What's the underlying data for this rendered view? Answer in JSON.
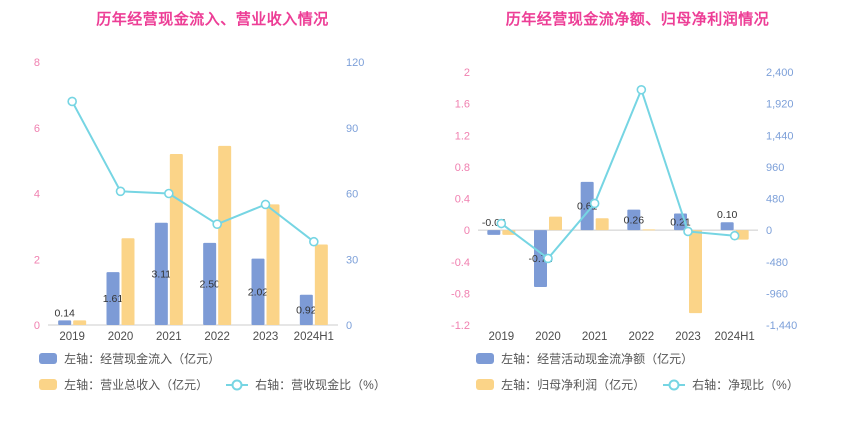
{
  "colors": {
    "title": "#ED3E96",
    "left_axis": "#F080B0",
    "right_axis": "#7DA0D9",
    "bar_blue": "#7D9BD6",
    "bar_yellow": "#FBD488",
    "line_cyan": "#76D5E3",
    "label_text": "#333333",
    "category_text": "#4D4D4D",
    "axis_line": "#CCCCCC",
    "legend_text": "#555555"
  },
  "chart_data": [
    {
      "type": "combo-bar-line",
      "title": "历年经营现金流入、营业收入情况",
      "categories": [
        "2019",
        "2020",
        "2021",
        "2022",
        "2023",
        "2024H1"
      ],
      "left_axis": {
        "min": 0,
        "max": 8,
        "tick_values": [
          0,
          2,
          4,
          6,
          8
        ],
        "tick_labels": [
          "0",
          "2",
          "4",
          "6",
          "8"
        ]
      },
      "right_axis": {
        "min": 0,
        "max": 120,
        "tick_values": [
          0,
          30,
          60,
          90,
          120
        ],
        "tick_labels": [
          "0",
          "30",
          "60",
          "90",
          "120"
        ]
      },
      "series": [
        {
          "id": "operating-cash-inflow",
          "name": "左轴：经营现金流入（亿元）",
          "type": "bar",
          "axis": "left",
          "color_key": "bar_blue",
          "values": [
            0.14,
            1.61,
            3.11,
            2.5,
            2.02,
            0.92
          ],
          "labels": [
            "0.14",
            "1.61",
            "3.11",
            "2.50",
            "2.02",
            "0.92"
          ]
        },
        {
          "id": "total-revenue",
          "name": "左轴：营业总收入（亿元）",
          "type": "bar",
          "axis": "left",
          "color_key": "bar_yellow",
          "values": [
            0.14,
            2.64,
            5.2,
            5.45,
            3.67,
            2.45
          ]
        },
        {
          "id": "revenue-cash-ratio",
          "name": "右轴：营收现金比（%）",
          "type": "line",
          "axis": "right",
          "color_key": "line_cyan",
          "values": [
            102,
            61,
            60,
            46,
            55,
            38
          ]
        }
      ],
      "legend_rows": [
        [
          0
        ],
        [
          1,
          2
        ]
      ]
    },
    {
      "type": "combo-bar-line",
      "title": "历年经营现金流净额、归母净利润情况",
      "categories": [
        "2019",
        "2020",
        "2021",
        "2022",
        "2023",
        "2024H1"
      ],
      "left_axis": {
        "min": -1.2,
        "max": 2,
        "tick_values": [
          -1.2,
          -0.8,
          -0.4,
          0,
          0.4,
          0.8,
          1.2,
          1.6,
          2
        ],
        "tick_labels": [
          "-1.2",
          "-0.8",
          "-0.4",
          "0",
          "0.4",
          "0.8",
          "1.2",
          "1.6",
          "2"
        ]
      },
      "right_axis": {
        "min": -1440,
        "max": 2400,
        "tick_values": [
          -1440,
          -960,
          -480,
          0,
          480,
          960,
          1440,
          1920,
          2400
        ],
        "tick_labels": [
          "-1,440",
          "-960",
          "-480",
          "0",
          "480",
          "960",
          "1,440",
          "1,920",
          "2,400"
        ]
      },
      "series": [
        {
          "id": "net-operating-cashflow",
          "name": "左轴：经营活动现金流净额（亿元）",
          "type": "bar",
          "axis": "left",
          "color_key": "bar_blue",
          "values": [
            -0.06,
            -0.72,
            0.61,
            0.26,
            0.21,
            0.1
          ],
          "labels": [
            "-0.06",
            "-0.72",
            "0.61",
            "0.26",
            "0.21",
            "0.10"
          ]
        },
        {
          "id": "net-profit",
          "name": "左轴：归母净利润（亿元）",
          "type": "bar",
          "axis": "left",
          "color_key": "bar_yellow",
          "values": [
            -0.06,
            0.17,
            0.15,
            0.01,
            -1.05,
            -0.12
          ]
        },
        {
          "id": "net-cash-ratio",
          "name": "右轴：净现比（%）",
          "type": "line",
          "axis": "right",
          "color_key": "line_cyan",
          "values": [
            100,
            -430,
            405,
            2130,
            -20,
            -85
          ]
        }
      ],
      "legend_rows": [
        [
          0
        ],
        [
          1,
          2
        ]
      ]
    }
  ]
}
